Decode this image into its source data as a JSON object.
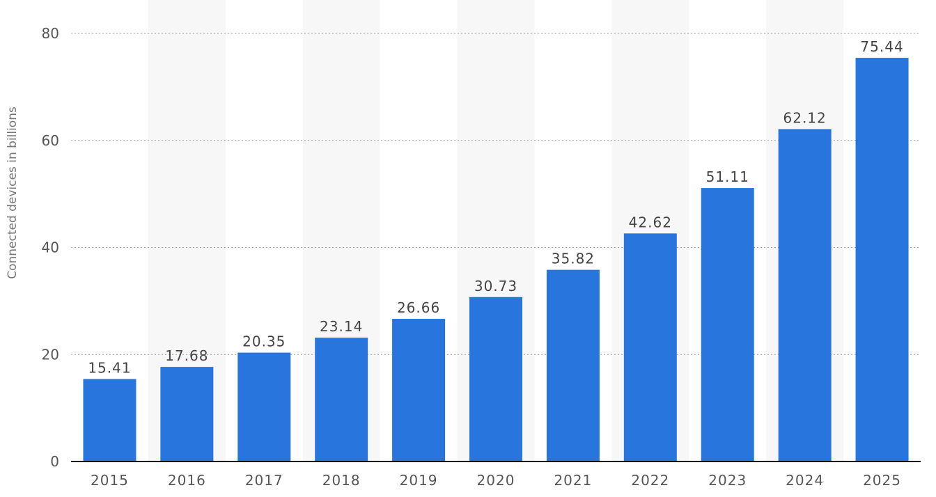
{
  "chart_data": {
    "type": "bar",
    "categories": [
      "2015",
      "2016",
      "2017",
      "2018",
      "2019",
      "2020",
      "2021",
      "2022",
      "2023",
      "2024",
      "2025"
    ],
    "series": [
      {
        "values": [
          15.41,
          17.68,
          20.35,
          23.14,
          26.66,
          30.73,
          35.82,
          42.62,
          51.11,
          62.12,
          75.44
        ]
      }
    ],
    "data_labels": [
      "15.41",
      "17.68",
      "20.35",
      "23.14",
      "26.66",
      "30.73",
      "35.82",
      "42.62",
      "51.11",
      "62.12",
      "75.44"
    ],
    "ylabel": "Connected devices in billions",
    "ylim": [
      0,
      80
    ],
    "yticks": [
      0,
      20,
      40,
      60,
      80
    ],
    "grid": true,
    "colors": {
      "bar": "#2876dd",
      "band": "#f7f7f7"
    }
  }
}
